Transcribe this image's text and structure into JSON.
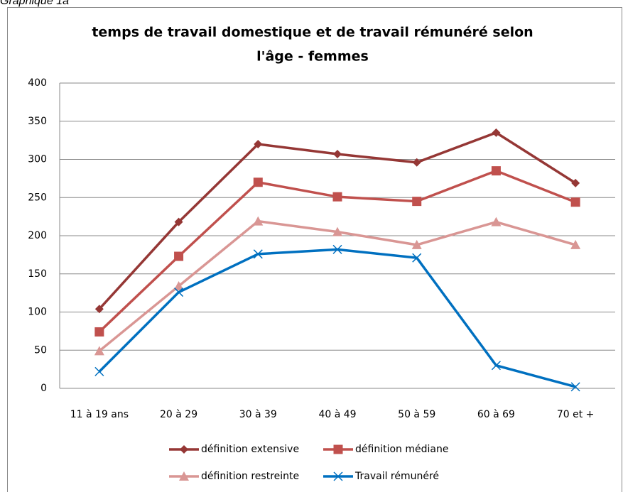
{
  "chart_data": {
    "type": "line",
    "caption": "Graphique 1a",
    "title_lines": [
      "temps de travail domestique et de travail rémunéré selon",
      "l'âge - femmes"
    ],
    "categories": [
      "11 à 19 ans",
      "20 à 29",
      "30 à 39",
      "40 à 49",
      "50 à 59",
      "60 à 69",
      "70 et  +"
    ],
    "series": [
      {
        "name": "définition extensive",
        "color": "#953735",
        "marker": "diamond",
        "values": [
          104,
          218,
          320,
          307,
          296,
          335,
          269
        ]
      },
      {
        "name": "définition médiane",
        "color": "#c0504d",
        "marker": "square",
        "values": [
          74,
          173,
          270,
          251,
          245,
          285,
          244
        ]
      },
      {
        "name": "définition restreinte",
        "color": "#d99694",
        "marker": "triangle",
        "values": [
          49,
          134,
          219,
          205,
          188,
          218,
          188
        ]
      },
      {
        "name": "Travail rémunéré",
        "color": "#0070c0",
        "marker": "x",
        "values": [
          22,
          126,
          176,
          182,
          171,
          30,
          2
        ]
      }
    ],
    "ylim": [
      0,
      400
    ],
    "yticks": [
      0,
      50,
      100,
      150,
      200,
      250,
      300,
      350,
      400
    ],
    "grid": true,
    "legend": "bottom"
  }
}
